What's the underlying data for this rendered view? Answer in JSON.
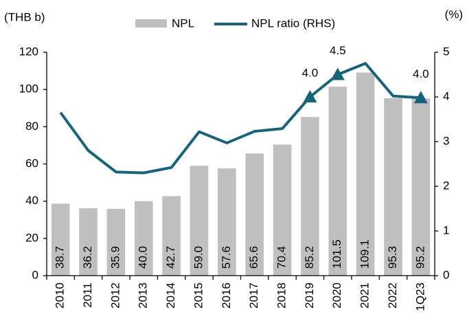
{
  "chart_data": {
    "type": "bar_line",
    "y_axis_label": "(THB b)",
    "y2_axis_label": "(%)",
    "categories": [
      "2010",
      "2011",
      "2012",
      "2013",
      "2014",
      "2015",
      "2016",
      "2017",
      "2018",
      "2019",
      "2020",
      "2021",
      "2022",
      "1Q23"
    ],
    "series": [
      {
        "name": "NPL",
        "type": "bar",
        "color": "#c0c0c0",
        "values": [
          38.7,
          36.2,
          35.9,
          40.0,
          42.7,
          59.0,
          57.6,
          65.6,
          70.4,
          85.2,
          101.5,
          109.1,
          95.3,
          95.2
        ],
        "value_labels": [
          "38.7",
          "36.2",
          "35.9",
          "40.0",
          "42.7",
          "59.0",
          "57.6",
          "65.6",
          "70.4",
          "85.2",
          "101.5",
          "109.1",
          "95.3",
          "95.2"
        ]
      },
      {
        "name": "NPL ratio (RHS)",
        "type": "line",
        "axis": "y2",
        "color": "#17647a",
        "values": [
          3.65,
          2.8,
          2.32,
          2.3,
          2.42,
          3.22,
          2.97,
          3.23,
          3.29,
          4.0,
          4.5,
          4.75,
          4.02,
          3.98
        ],
        "value_labels": [
          null,
          null,
          null,
          null,
          null,
          null,
          null,
          null,
          null,
          "4.0",
          "4.5",
          null,
          null,
          "4.0"
        ]
      }
    ],
    "ylim": [
      0,
      120
    ],
    "yticks": [
      0,
      20,
      40,
      60,
      80,
      100,
      120
    ],
    "y2lim": [
      0,
      5
    ],
    "y2ticks": [
      0,
      1,
      2,
      3,
      4,
      5
    ]
  }
}
